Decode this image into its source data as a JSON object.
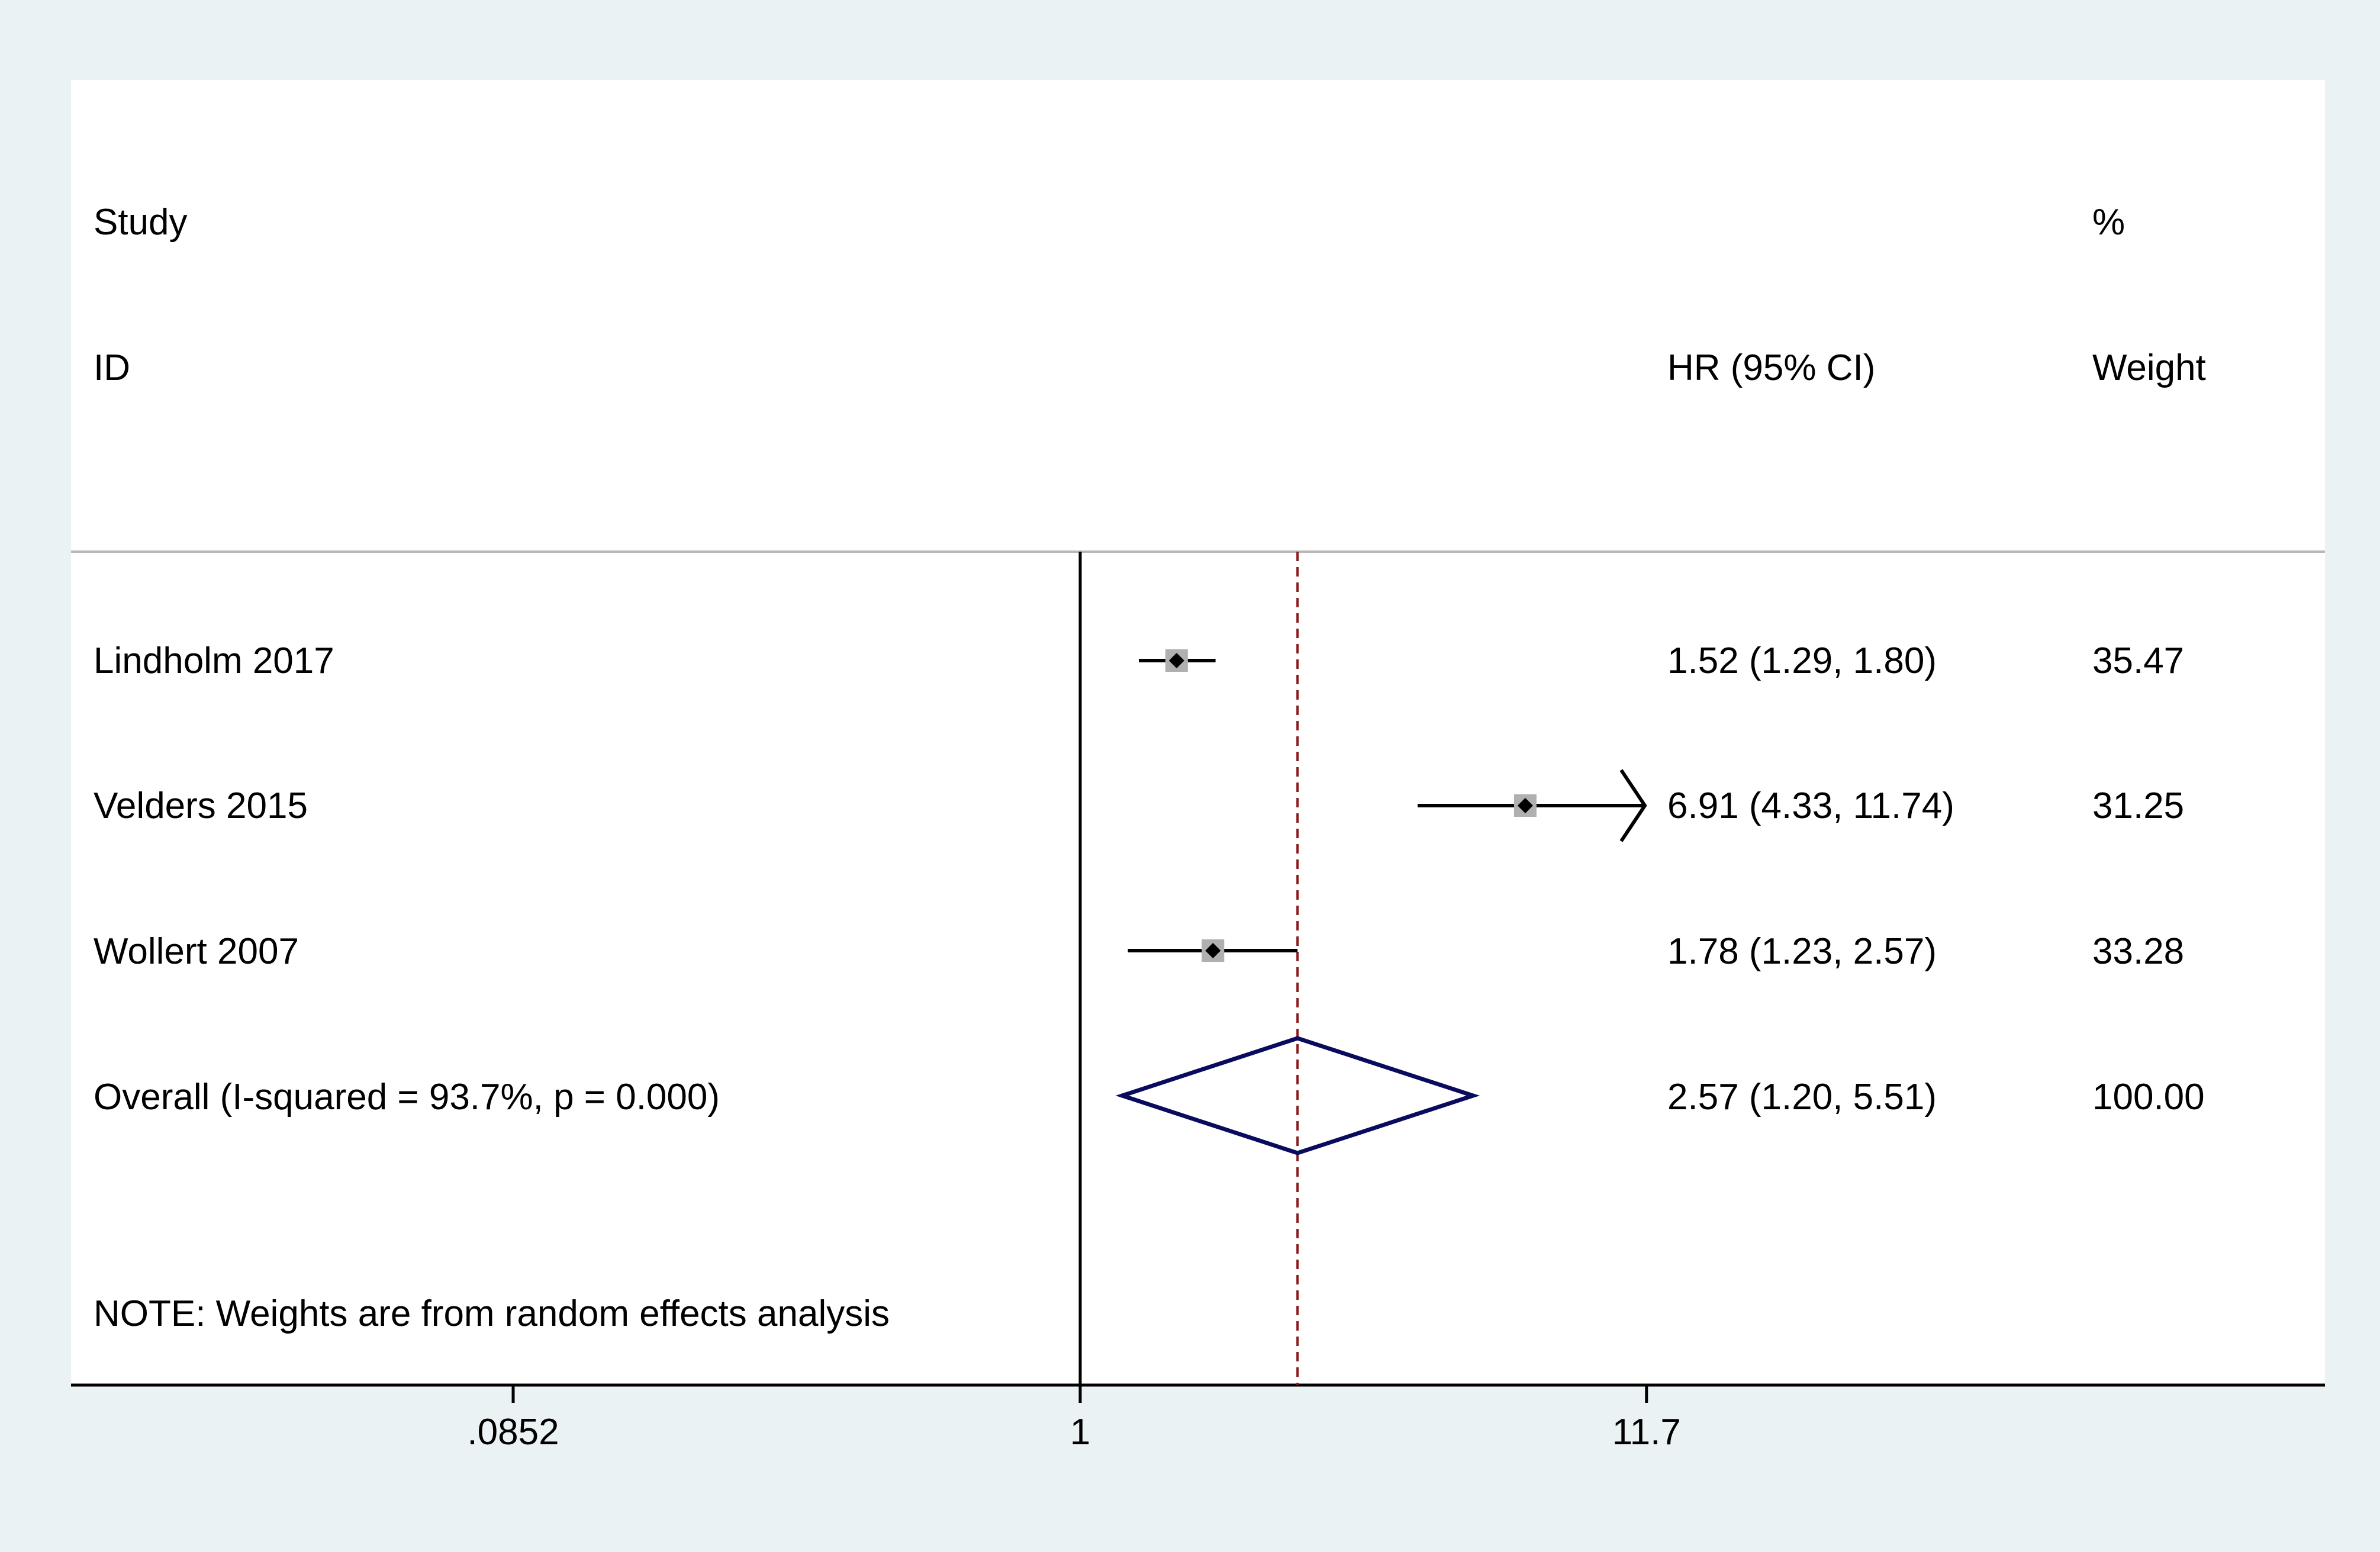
{
  "chart_data": {
    "type": "forest",
    "x_scale": "log",
    "x_ticks": [
      {
        "label": ".0852",
        "value": 0.0852
      },
      {
        "label": "1",
        "value": 1
      },
      {
        "label": "11.7",
        "value": 11.7
      }
    ],
    "null_line": 1,
    "header": {
      "study_line1": "Study",
      "study_line2": "ID",
      "effect_line2": "HR (95% CI)",
      "weight_line1": "%",
      "weight_line2": "Weight"
    },
    "studies": [
      {
        "label": "Lindholm 2017",
        "hr": 1.52,
        "lo": 1.29,
        "hi": 1.8,
        "weight": 35.47,
        "ci_text": "1.52 (1.29, 1.80)",
        "weight_text": "35.47"
      },
      {
        "label": "Velders 2015",
        "hr": 6.91,
        "lo": 4.33,
        "hi": 11.74,
        "weight": 31.25,
        "ci_text": "6.91 (4.33, 11.74)",
        "weight_text": "31.25"
      },
      {
        "label": "Wollert 2007",
        "hr": 1.78,
        "lo": 1.23,
        "hi": 2.57,
        "weight": 33.28,
        "ci_text": "1.78 (1.23, 2.57)",
        "weight_text": "33.28"
      }
    ],
    "overall": {
      "label": "Overall  (I-squared = 93.7%, p = 0.000)",
      "hr": 2.57,
      "lo": 1.2,
      "hi": 5.51,
      "ci_text": "2.57 (1.20, 5.51)",
      "weight_text": "100.00"
    },
    "note": "NOTE: Weights are from random effects analysis",
    "colors": {
      "background": "#eaf2f3",
      "panel": "#ffffff",
      "diamond": "#0a0a5e",
      "overall_line": "#8b1a1a",
      "weight_box": "#b0b0b0",
      "marker": "#000000",
      "header_rule": "#b8b8b8"
    }
  }
}
